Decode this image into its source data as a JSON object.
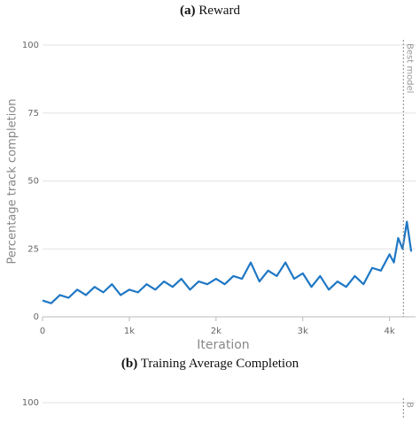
{
  "chart_data": [
    {
      "type": "line",
      "caption_label": "(a)",
      "caption": "Reward",
      "xlabel": "Iteration",
      "ylabel": "Percentage track completion",
      "x": [
        0,
        100,
        200,
        300,
        400,
        500,
        600,
        700,
        800,
        900,
        1000,
        1100,
        1200,
        1300,
        1400,
        1500,
        1600,
        1700,
        1800,
        1900,
        2000,
        2100,
        2200,
        2300,
        2400,
        2500,
        2600,
        2700,
        2800,
        2900,
        3000,
        3100,
        3200,
        3300,
        3400,
        3500,
        3600,
        3700,
        3800,
        3900,
        4000,
        4050,
        4100,
        4150,
        4200,
        4250
      ],
      "series": [
        {
          "name": "Percentage track completion",
          "color": "#1f77c4",
          "values": [
            6,
            5,
            8,
            7,
            10,
            8,
            11,
            9,
            12,
            8,
            10,
            9,
            12,
            10,
            13,
            11,
            14,
            10,
            13,
            12,
            14,
            12,
            15,
            14,
            20,
            13,
            17,
            15,
            20,
            14,
            16,
            11,
            15,
            10,
            13,
            11,
            15,
            12,
            18,
            17,
            23,
            20,
            29,
            25,
            35,
            24
          ]
        }
      ],
      "xlim": [
        0,
        4300
      ],
      "ylim": [
        0,
        100
      ],
      "xticks": [
        0,
        {
          "value": 1000,
          "label": "1k"
        },
        {
          "value": 2000,
          "label": "2k"
        },
        {
          "value": 3000,
          "label": "3k"
        },
        {
          "value": 4000,
          "label": "4k"
        }
      ],
      "yticks": [
        0,
        25,
        50,
        75,
        100
      ],
      "grid": true,
      "marker_line": {
        "x": 4160,
        "label": "Best model"
      }
    },
    {
      "type": "line",
      "caption_label": "(b)",
      "caption": "Training Average Completion",
      "xlim": [
        0,
        4300
      ],
      "ylim": [
        0,
        100
      ],
      "yticks": [
        100
      ],
      "grid": true,
      "marker_line": {
        "x": 4160,
        "label": "B"
      }
    }
  ]
}
